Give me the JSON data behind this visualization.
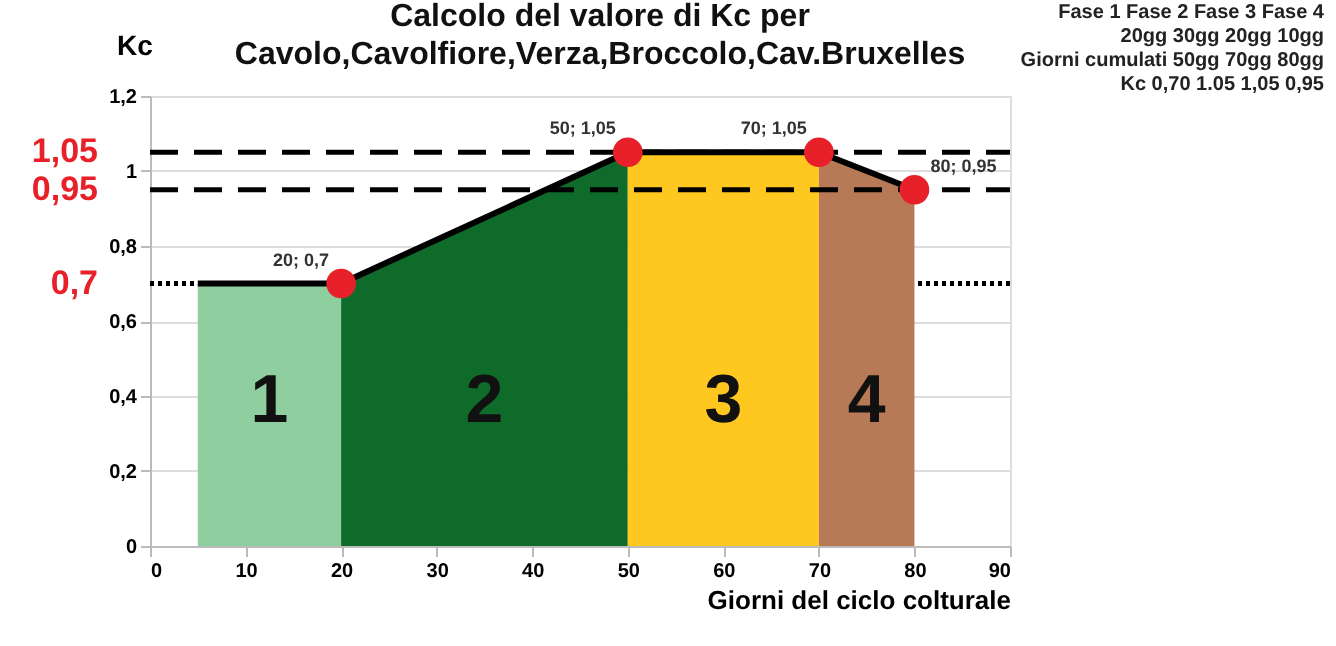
{
  "chart_data": {
    "type": "area",
    "title": "Calcolo del valore di Kc per Cavolo,Cavolfiore,Verza,Broccolo,Cav.Bruxelles",
    "xlabel": "Giorni del ciclo colturale",
    "ylabel": "Kc",
    "xlim": [
      0,
      90
    ],
    "xticks": [
      0,
      10,
      20,
      30,
      40,
      50,
      60,
      70,
      80,
      90
    ],
    "ylim": [
      0,
      1.2
    ],
    "yticks": [
      0,
      {
        "value": 0.2,
        "label": "0,2"
      },
      {
        "value": 0.4,
        "label": "0,4"
      },
      {
        "value": 0.6,
        "label": "0,6"
      },
      {
        "value": 0.8,
        "label": "0,8"
      },
      1,
      {
        "value": 1.2,
        "label": "1,2"
      }
    ],
    "grid": "y",
    "series": [
      {
        "color": "#8fce9f",
        "x": [
          5,
          20
        ],
        "values": [
          0.7,
          0.7
        ]
      },
      {
        "color": "#0f6b2a",
        "x": [
          20,
          50
        ],
        "values": [
          0.7,
          1.05
        ]
      },
      {
        "color": "#ffc820",
        "x": [
          50,
          70
        ],
        "values": [
          1.05,
          1.05
        ]
      },
      {
        "color": "#b87a56",
        "x": [
          70,
          80
        ],
        "values": [
          1.05,
          0.95
        ]
      },
      {
        "type": "line",
        "color": "#000000",
        "x": [
          5,
          20,
          50,
          70,
          80
        ],
        "values": [
          0.7,
          0.7,
          1.05,
          1.05,
          0.95
        ],
        "marker": "none"
      },
      {
        "type": "scatter",
        "color": "#e8202a",
        "marker": "circle",
        "x": [
          20,
          50,
          70,
          80
        ],
        "values": [
          0.7,
          1.05,
          1.05,
          0.95
        ],
        "value_labels": [
          "20; 0,7",
          "50; 1,05",
          "70; 1,05",
          "80; 0,95"
        ]
      }
    ],
    "ref_lines": [
      {
        "axis": "y",
        "value": 1.05,
        "label": "1,05",
        "color": "#000000",
        "line_style": "dashed"
      },
      {
        "axis": "y",
        "value": 0.95,
        "label": "0,95",
        "color": "#000000",
        "line_style": "dashed"
      },
      {
        "axis": "y",
        "value": 0.7,
        "label": "0,7",
        "color": "#000000",
        "line_style": "dotted"
      }
    ],
    "annotations": [
      "1",
      "2",
      "3",
      "4",
      "Fase 1  Fase 2  Fase 3  Fase 4",
      "20gg  30gg  20gg  10gg",
      "Giorni cumulati  50gg  70gg  80gg",
      "Kc  0,70  1.05  1,05  0,95"
    ]
  }
}
